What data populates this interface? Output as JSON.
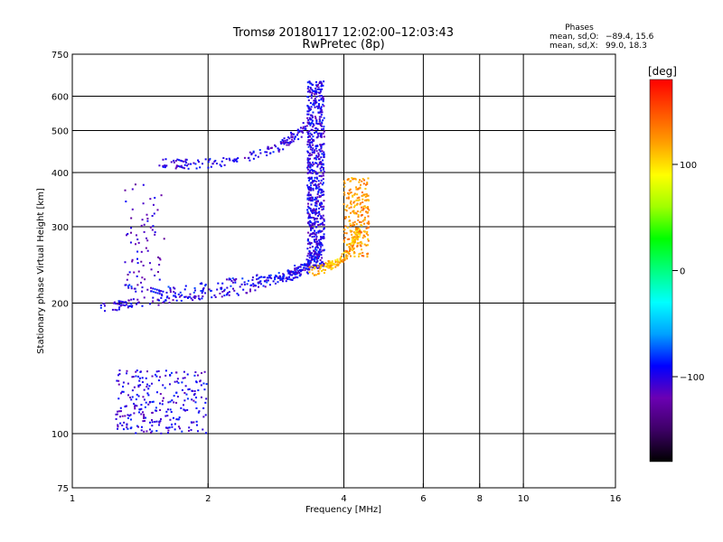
{
  "chart_data": {
    "type": "scatter",
    "title": "Tromsø 20180117 12:02:00–12:03:43",
    "subtitle": "RwPretec (8p)",
    "xlabel": "Frequency [MHz]",
    "ylabel": "Stationary phase Virtual Height [km]",
    "x_scale": "log",
    "y_scale": "log",
    "xlim": [
      1,
      16
    ],
    "ylim": [
      75,
      750
    ],
    "x_ticks": [
      1,
      2,
      4,
      6,
      8,
      10,
      16
    ],
    "x_tick_labels": [
      "1",
      "2",
      "4",
      "6",
      "8",
      "10",
      "16"
    ],
    "y_ticks": [
      75,
      100,
      200,
      300,
      400,
      500,
      600,
      750
    ],
    "y_tick_labels": [
      "75",
      "100",
      "200",
      "300",
      "400",
      "500",
      "600",
      "750"
    ],
    "x_gridlines": [
      2,
      4,
      6,
      8,
      10
    ],
    "y_gridlines": [
      100,
      200,
      300,
      400,
      500,
      600
    ],
    "grid": true,
    "annotation": {
      "heading": "Phases",
      "line1_label": "mean, sd,O:",
      "line1_values": "−89.4, 15.6",
      "line2_label": "mean, sd,X:",
      "line2_values": "99.0, 18.3"
    },
    "colorbar": {
      "title": "[deg]",
      "range": [
        -180,
        180
      ],
      "ticks": [
        100,
        0,
        -100
      ],
      "tick_labels": [
        "100",
        "0",
        "−100"
      ],
      "colormap": [
        "#000000",
        "#3d0066",
        "#6b00b3",
        "#0000ff",
        "#00a0ff",
        "#00ffff",
        "#00ff80",
        "#00ff00",
        "#a0ff00",
        "#ffff00",
        "#ffa000",
        "#ff5000",
        "#ff0000"
      ]
    },
    "clusters": [
      {
        "name": "E-region echoes",
        "shape": "blob",
        "f_range": [
          1.25,
          2.0
        ],
        "h_range": [
          100,
          140
        ],
        "phase": -100,
        "count": 260
      },
      {
        "name": "F1 trace",
        "shape": "curve",
        "points": [
          [
            1.15,
            195
          ],
          [
            1.4,
            200
          ],
          [
            1.7,
            206
          ],
          [
            2.0,
            210
          ],
          [
            2.4,
            215
          ],
          [
            2.8,
            225
          ],
          [
            3.1,
            233
          ],
          [
            3.3,
            240
          ],
          [
            3.45,
            250
          ]
        ],
        "phase": -100,
        "count": 230
      },
      {
        "name": "F2 O-mode lower trace",
        "shape": "curve",
        "points": [
          [
            1.3,
            218
          ],
          [
            1.7,
            212
          ],
          [
            2.1,
            220
          ],
          [
            2.5,
            226
          ],
          [
            2.9,
            232
          ],
          [
            3.2,
            240
          ],
          [
            3.45,
            255
          ],
          [
            3.55,
            270
          ]
        ],
        "phase": -95,
        "count": 170
      },
      {
        "name": "F2 O-mode upper trace",
        "shape": "curve",
        "points": [
          [
            1.55,
            420
          ],
          [
            1.8,
            418
          ],
          [
            2.1,
            420
          ],
          [
            2.4,
            430
          ],
          [
            2.7,
            445
          ],
          [
            2.95,
            465
          ],
          [
            3.15,
            490
          ],
          [
            3.35,
            520
          ]
        ],
        "phase": -100,
        "count": 160
      },
      {
        "name": "F2 O-mode spread",
        "shape": "column",
        "f_range": [
          3.32,
          3.62
        ],
        "h_range": [
          240,
          650
        ],
        "phase": -100,
        "count": 650
      },
      {
        "name": "F1 cusp",
        "shape": "band",
        "f_range": [
          1.3,
          1.6
        ],
        "h_range": [
          220,
          380
        ],
        "phase": -110,
        "count": 70
      },
      {
        "name": "X-mode lower trace",
        "shape": "curve",
        "points": [
          [
            3.4,
            236
          ],
          [
            3.7,
            243
          ],
          [
            3.95,
            252
          ],
          [
            4.1,
            262
          ],
          [
            4.25,
            280
          ],
          [
            4.35,
            300
          ]
        ],
        "phase": 115,
        "count": 160
      },
      {
        "name": "X-mode spread",
        "shape": "column",
        "f_range": [
          4.0,
          4.55
        ],
        "h_range": [
          255,
          390
        ],
        "phase": 125,
        "count": 230
      }
    ]
  }
}
